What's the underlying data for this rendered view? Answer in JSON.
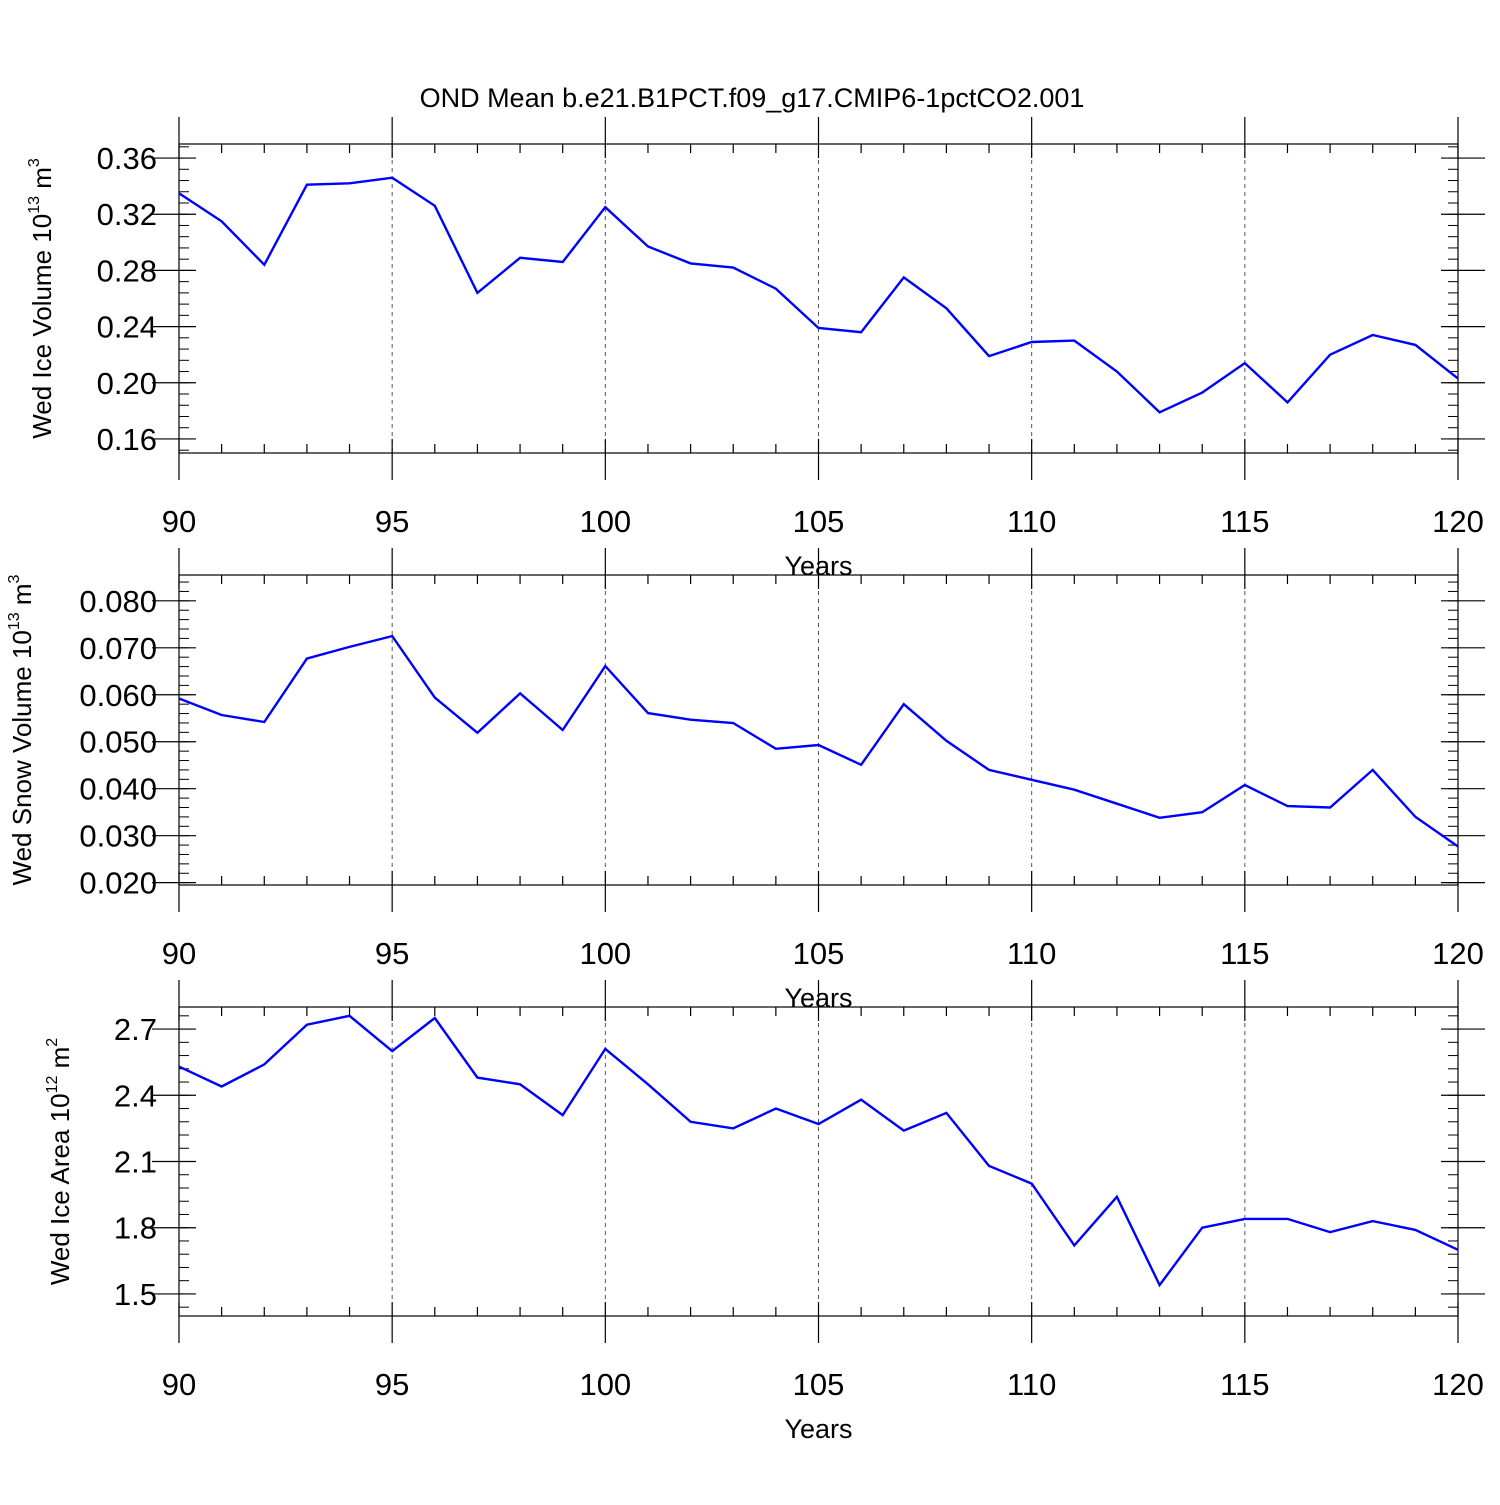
{
  "title": "OND Mean b.e21.B1PCT.f09_g17.CMIP6-1pctCO2.001",
  "chart_data": [
    {
      "type": "line",
      "ylabel": "Wed Ice Volume 10^13 m^3",
      "ylabel_parts": {
        "prefix": "Wed Ice Volume 10",
        "exp1": "13",
        "mid": " m",
        "exp2": "3"
      },
      "xlabel": "Years",
      "xlim": [
        90,
        120
      ],
      "ylim": [
        0.15,
        0.37
      ],
      "y_ticks": [
        0.16,
        0.2,
        0.24,
        0.28,
        0.32,
        0.36
      ],
      "y_tick_labels": [
        "0.16",
        "0.20",
        "0.24",
        "0.28",
        "0.32",
        "0.36"
      ],
      "y_minor_step": 0.008,
      "x_ticks": [
        90,
        95,
        100,
        105,
        110,
        115,
        120
      ],
      "x_tick_labels": [
        "90",
        "95",
        "100",
        "105",
        "110",
        "115",
        "120"
      ],
      "color": "#0000ff",
      "x": [
        90,
        91,
        92,
        93,
        94,
        95,
        96,
        97,
        98,
        99,
        100,
        101,
        102,
        103,
        104,
        105,
        106,
        107,
        108,
        109,
        110,
        111,
        112,
        113,
        114,
        115,
        116,
        117,
        118,
        119,
        120
      ],
      "values": [
        0.335,
        0.315,
        0.284,
        0.341,
        0.342,
        0.346,
        0.326,
        0.264,
        0.289,
        0.286,
        0.325,
        0.297,
        0.285,
        0.282,
        0.267,
        0.239,
        0.236,
        0.275,
        0.253,
        0.219,
        0.229,
        0.23,
        0.208,
        0.179,
        0.193,
        0.214,
        0.186,
        0.22,
        0.234,
        0.227,
        0.203
      ]
    },
    {
      "type": "line",
      "ylabel": "Wed Snow Volume 10^13 m^3",
      "ylabel_parts": {
        "prefix": "Wed Snow Volume 10",
        "exp1": "13",
        "mid": " m",
        "exp2": "3"
      },
      "xlabel": "Years",
      "xlim": [
        90,
        120
      ],
      "ylim": [
        0.0195,
        0.0855
      ],
      "y_ticks": [
        0.02,
        0.03,
        0.04,
        0.05,
        0.06,
        0.07,
        0.08
      ],
      "y_tick_labels": [
        "0.020",
        "0.030",
        "0.040",
        "0.050",
        "0.060",
        "0.070",
        "0.080"
      ],
      "y_minor_step": 0.002,
      "x_ticks": [
        90,
        95,
        100,
        105,
        110,
        115,
        120
      ],
      "x_tick_labels": [
        "90",
        "95",
        "100",
        "105",
        "110",
        "115",
        "120"
      ],
      "color": "#0000ff",
      "x": [
        90,
        91,
        92,
        93,
        94,
        95,
        96,
        97,
        98,
        99,
        100,
        101,
        102,
        103,
        104,
        105,
        106,
        107,
        108,
        109,
        110,
        111,
        112,
        113,
        114,
        115,
        116,
        117,
        118,
        119,
        120
      ],
      "values": [
        0.0592,
        0.0557,
        0.0542,
        0.0677,
        0.0702,
        0.0725,
        0.0594,
        0.0519,
        0.0603,
        0.0525,
        0.0661,
        0.0561,
        0.0547,
        0.054,
        0.0485,
        0.0493,
        0.0451,
        0.058,
        0.0502,
        0.044,
        0.0419,
        0.0398,
        0.0368,
        0.0338,
        0.035,
        0.0408,
        0.0363,
        0.036,
        0.044,
        0.034,
        0.0277
      ]
    },
    {
      "type": "line",
      "ylabel": "Wed Ice Area 10^12 m^2",
      "ylabel_parts": {
        "prefix": "Wed Ice Area 10",
        "exp1": "12",
        "mid": " m",
        "exp2": "2"
      },
      "xlabel": "Years",
      "xlim": [
        90,
        120
      ],
      "ylim": [
        1.4,
        2.8
      ],
      "y_ticks": [
        1.5,
        1.8,
        2.1,
        2.4,
        2.7
      ],
      "y_tick_labels": [
        "1.5",
        "1.8",
        "2.1",
        "2.4",
        "2.7"
      ],
      "y_minor_step": 0.06,
      "x_ticks": [
        90,
        95,
        100,
        105,
        110,
        115,
        120
      ],
      "x_tick_labels": [
        "90",
        "95",
        "100",
        "105",
        "110",
        "115",
        "120"
      ],
      "color": "#0000ff",
      "x": [
        90,
        91,
        92,
        93,
        94,
        95,
        96,
        97,
        98,
        99,
        100,
        101,
        102,
        103,
        104,
        105,
        106,
        107,
        108,
        109,
        110,
        111,
        112,
        113,
        114,
        115,
        116,
        117,
        118,
        119,
        120
      ],
      "values": [
        2.53,
        2.44,
        2.54,
        2.72,
        2.76,
        2.6,
        2.75,
        2.48,
        2.45,
        2.31,
        2.61,
        2.45,
        2.28,
        2.25,
        2.34,
        2.27,
        2.38,
        2.24,
        2.32,
        2.08,
        2.0,
        1.72,
        1.94,
        1.54,
        1.8,
        1.84,
        1.84,
        1.78,
        1.83,
        1.79,
        1.7
      ]
    }
  ]
}
